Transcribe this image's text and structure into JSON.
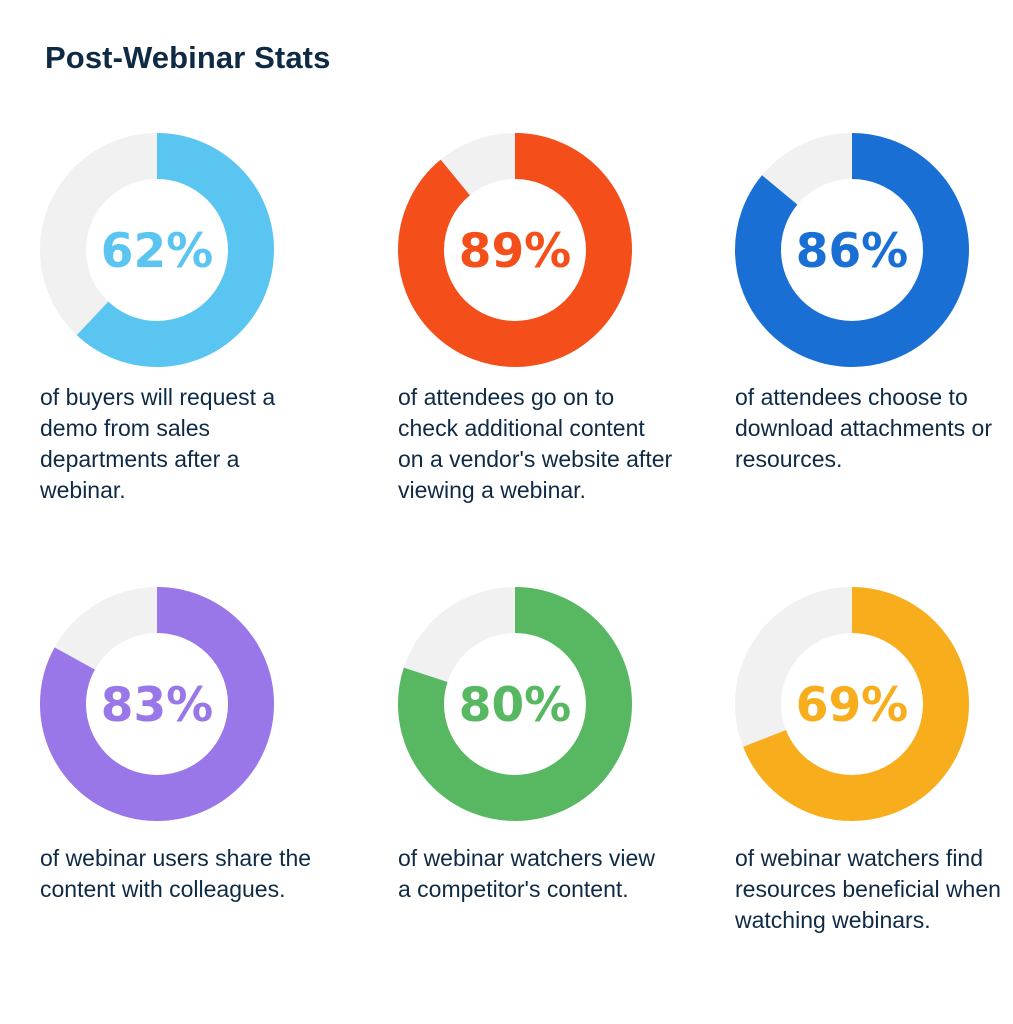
{
  "title": "Post-Webinar Stats",
  "colors": {
    "track": "#f1f1f1",
    "text": "#0f2a44"
  },
  "chart_data": [
    {
      "type": "pie",
      "value": 62,
      "label": "62%",
      "color": "#5bc5f2",
      "description": "of buyers will request a demo from sales departments after a webinar."
    },
    {
      "type": "pie",
      "value": 89,
      "label": "89%",
      "color": "#f44f1b",
      "description": "of attendees go on to check additional content on a vendor's website after viewing a webinar."
    },
    {
      "type": "pie",
      "value": 86,
      "label": "86%",
      "color": "#1a6fd4",
      "description": "of attendees choose to download attachments or resources."
    },
    {
      "type": "pie",
      "value": 83,
      "label": "83%",
      "color": "#9a77e8",
      "description": "of webinar users share the content with colleagues."
    },
    {
      "type": "pie",
      "value": 80,
      "label": "80%",
      "color": "#58b862",
      "description": "of webinar watchers view a competitor's content."
    },
    {
      "type": "pie",
      "value": 69,
      "label": "69%",
      "color": "#f8ae1c",
      "description": "of webinar watchers find resources beneficial when watching webinars."
    }
  ]
}
